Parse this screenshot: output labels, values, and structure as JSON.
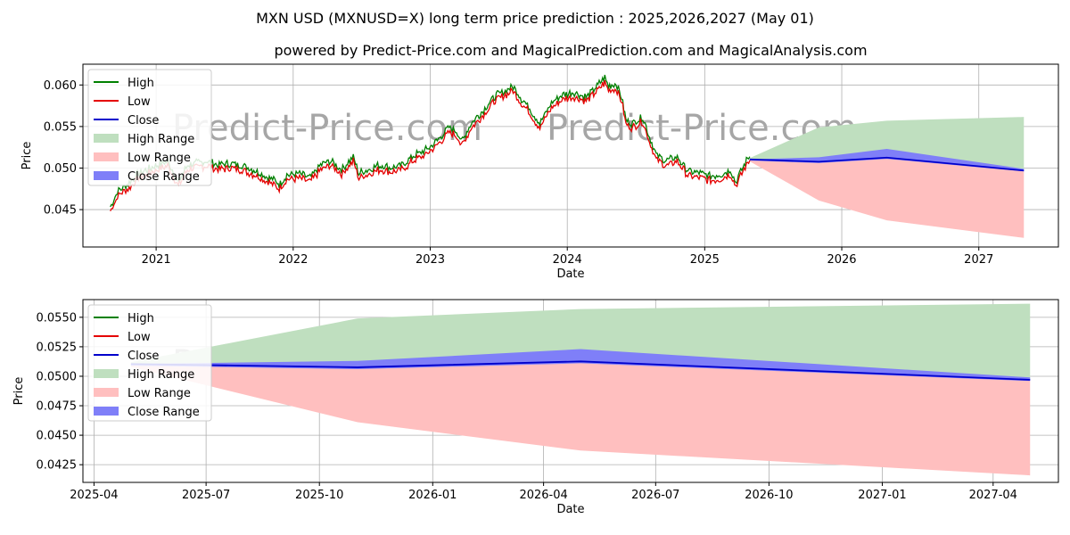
{
  "title": "MXN USD (MXNUSD=X) long term price prediction : 2025,2026,2027 (May 01)",
  "subtitle": "powered by Predict-Price.com and MagicalPrediction.com and MagicalAnalysis.com",
  "watermark": "Predict-Price.com",
  "colors": {
    "high": "#008000",
    "low": "#e50000",
    "close": "#0000cc",
    "high_range": "#bfdfbf",
    "low_range": "#ffbfbf",
    "close_range": "#7f7ff8"
  },
  "chart_data": [
    {
      "type": "line",
      "panel": "top",
      "xlabel": "Date",
      "ylabel": "Price",
      "xlim": [
        "2020-06-20",
        "2027-08-01"
      ],
      "ylim": [
        0.0405,
        0.0625
      ],
      "x_ticks": [
        "2021",
        "2022",
        "2023",
        "2024",
        "2025",
        "2026",
        "2027"
      ],
      "x_tick_dates": [
        "2021-01-01",
        "2022-01-01",
        "2023-01-01",
        "2024-01-01",
        "2025-01-01",
        "2026-01-01",
        "2027-01-01"
      ],
      "y_ticks": [
        "0.045",
        "0.050",
        "0.055",
        "0.060"
      ],
      "grid": true,
      "legend": {
        "position": "top-left",
        "entries": [
          "High",
          "Low",
          "Close",
          "High Range",
          "Low Range",
          "Close Range"
        ]
      },
      "history": {
        "x": [
          "2020-09-01",
          "2020-09-20",
          "2020-10-15",
          "2020-11-15",
          "2020-12-10",
          "2021-01-05",
          "2021-02-01",
          "2021-03-01",
          "2021-03-25",
          "2021-04-15",
          "2021-05-15",
          "2021-06-15",
          "2021-07-15",
          "2021-08-15",
          "2021-09-15",
          "2021-10-15",
          "2021-11-10",
          "2021-11-25",
          "2021-12-15",
          "2022-01-15",
          "2022-02-15",
          "2022-03-15",
          "2022-04-10",
          "2022-05-10",
          "2022-06-10",
          "2022-06-25",
          "2022-07-20",
          "2022-08-20",
          "2022-09-20",
          "2022-10-20",
          "2022-11-20",
          "2022-12-20",
          "2023-01-20",
          "2023-02-20",
          "2023-03-15",
          "2023-03-25",
          "2023-04-20",
          "2023-05-20",
          "2023-06-20",
          "2023-07-20",
          "2023-08-10",
          "2023-09-01",
          "2023-09-20",
          "2023-10-05",
          "2023-10-20",
          "2023-11-20",
          "2023-12-20",
          "2024-01-20",
          "2024-02-20",
          "2024-03-20",
          "2024-04-10",
          "2024-04-20",
          "2024-05-10",
          "2024-05-25",
          "2024-06-05",
          "2024-06-20",
          "2024-07-20",
          "2024-08-10",
          "2024-08-25",
          "2024-09-20",
          "2024-10-20",
          "2024-11-05",
          "2024-11-20",
          "2024-12-20",
          "2025-01-20",
          "2025-02-20",
          "2025-03-10",
          "2025-03-25",
          "2025-04-10",
          "2025-04-25",
          "2025-05-01"
        ],
        "close": [
          0.045,
          0.0468,
          0.0476,
          0.049,
          0.0495,
          0.05,
          0.0505,
          0.048,
          0.05,
          0.0502,
          0.0505,
          0.05,
          0.0502,
          0.05,
          0.0495,
          0.0488,
          0.0482,
          0.0477,
          0.0488,
          0.049,
          0.0485,
          0.05,
          0.0505,
          0.0495,
          0.051,
          0.049,
          0.0495,
          0.05,
          0.0497,
          0.05,
          0.0512,
          0.0518,
          0.053,
          0.0545,
          0.054,
          0.0528,
          0.055,
          0.0565,
          0.0582,
          0.059,
          0.0595,
          0.058,
          0.057,
          0.056,
          0.055,
          0.0575,
          0.0585,
          0.0588,
          0.0582,
          0.0595,
          0.0605,
          0.0595,
          0.0598,
          0.0582,
          0.0555,
          0.055,
          0.0558,
          0.053,
          0.0512,
          0.0505,
          0.051,
          0.05,
          0.0492,
          0.049,
          0.0487,
          0.049,
          0.0495,
          0.048,
          0.0495,
          0.0508,
          0.0511
        ]
      },
      "forecast": {
        "x": [
          "2025-05-01",
          "2025-11-01",
          "2026-05-01",
          "2027-05-01"
        ],
        "close": [
          0.05104,
          0.05076,
          0.05126,
          0.0497
        ],
        "close_range_high": [
          0.05104,
          0.0513,
          0.0523,
          0.0499
        ],
        "close_range_low": [
          0.0509,
          0.0506,
          0.0511,
          0.0496
        ],
        "high_range": [
          0.0512,
          0.0549,
          0.0557,
          0.05615
        ],
        "low_range": [
          0.0508,
          0.0461,
          0.0437,
          0.0416
        ]
      }
    },
    {
      "type": "line",
      "panel": "bottom",
      "xlabel": "Date",
      "ylabel": "Price",
      "xlim": [
        "2025-03-23",
        "2027-05-24"
      ],
      "ylim": [
        0.041,
        0.0565
      ],
      "x_ticks": [
        "2025-04",
        "2025-07",
        "2025-10",
        "2026-01",
        "2026-04",
        "2026-07",
        "2026-10",
        "2027-01",
        "2027-04"
      ],
      "x_tick_dates": [
        "2025-04-01",
        "2025-07-01",
        "2025-10-01",
        "2026-01-01",
        "2026-04-01",
        "2026-07-01",
        "2026-10-01",
        "2027-01-01",
        "2027-04-01"
      ],
      "y_ticks": [
        "0.0425",
        "0.0450",
        "0.0475",
        "0.0500",
        "0.0525",
        "0.0550"
      ],
      "grid": true,
      "legend": {
        "position": "top-left",
        "entries": [
          "High",
          "Low",
          "Close",
          "High Range",
          "Low Range",
          "Close Range"
        ]
      },
      "forecast": {
        "x": [
          "2025-05-01",
          "2025-11-01",
          "2026-05-01",
          "2027-05-01"
        ],
        "close": [
          0.05104,
          0.05076,
          0.05126,
          0.0497
        ],
        "close_range_high": [
          0.05104,
          0.0513,
          0.0523,
          0.0499
        ],
        "close_range_low": [
          0.0509,
          0.0506,
          0.0511,
          0.0496
        ],
        "high_range": [
          0.0512,
          0.0549,
          0.0557,
          0.05615
        ],
        "low_range": [
          0.0508,
          0.0461,
          0.0437,
          0.0416
        ]
      }
    }
  ]
}
